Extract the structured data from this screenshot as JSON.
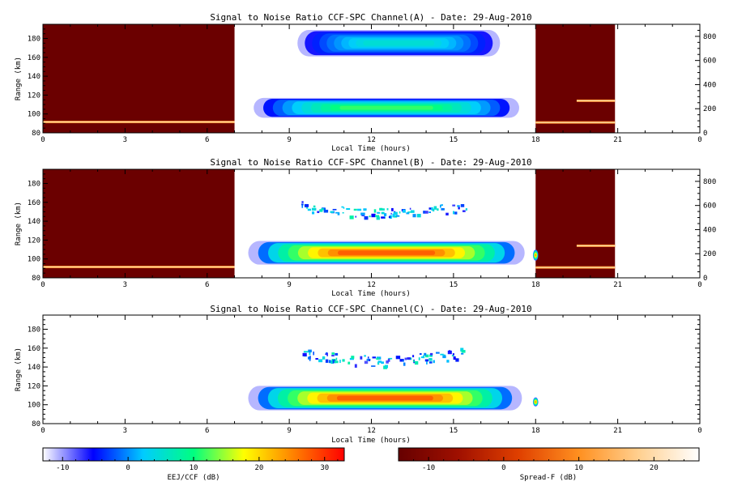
{
  "chart_data": {
    "type": "heatmap",
    "panels": [
      {
        "title": "Signal to Noise Ratio CCF-SPC Channel(A) - Date: 29-Aug-2010",
        "xlabel": "Local Time (hours)",
        "ylabel": "Range (km)",
        "xlim": [
          0,
          24
        ],
        "xticks": [
          "0",
          "3",
          "6",
          "9",
          "12",
          "15",
          "18",
          "21",
          "0"
        ],
        "ylim": [
          80,
          195
        ],
        "yticks": [
          "80",
          "100",
          "120",
          "140",
          "160",
          "180"
        ],
        "right_ylim": [
          0,
          900
        ],
        "right_yticks": [
          "0",
          "200",
          "400",
          "600",
          "800"
        ],
        "spreadf_intervals": [
          [
            0,
            7
          ],
          [
            18,
            20.9
          ]
        ],
        "spreadf_traces": [
          [
            0,
            7,
            91.5
          ],
          [
            18,
            20.9,
            91
          ],
          [
            19.5,
            20.9,
            114
          ]
        ],
        "blobs": [
          {
            "x0": 9.3,
            "x1": 16.7,
            "y0": 161,
            "y1": 189,
            "peak_db": 6
          },
          {
            "x0": 7.7,
            "x1": 17.4,
            "y0": 96,
            "y1": 117,
            "peak_db": 13
          }
        ]
      },
      {
        "title": "Signal to Noise Ratio CCF-SPC Channel(B) - Date: 29-Aug-2010",
        "xlabel": "Local Time (hours)",
        "ylabel": "Range (km)",
        "xlim": [
          0,
          24
        ],
        "xticks": [
          "0",
          "3",
          "6",
          "9",
          "12",
          "15",
          "18",
          "21",
          "0"
        ],
        "ylim": [
          80,
          195
        ],
        "yticks": [
          "80",
          "100",
          "120",
          "140",
          "160",
          "180"
        ],
        "right_ylim": [
          0,
          900
        ],
        "right_yticks": [
          "0",
          "200",
          "400",
          "600",
          "800"
        ],
        "spreadf_intervals": [
          [
            0,
            7
          ],
          [
            18,
            20.9
          ]
        ],
        "spreadf_traces": [
          [
            0,
            7,
            91.5
          ],
          [
            18,
            20.9,
            91
          ],
          [
            19.5,
            20.9,
            114
          ]
        ],
        "blobs": [
          {
            "x0": 9.4,
            "x1": 15.5,
            "y0": 143,
            "y1": 165,
            "peak_db": 8,
            "style": "scatter"
          },
          {
            "x0": 7.5,
            "x1": 17.6,
            "y0": 94,
            "y1": 119,
            "peak_db": 30
          },
          {
            "x0": 17.9,
            "x1": 18.1,
            "y0": 98,
            "y1": 110,
            "peak_db": 25
          }
        ]
      },
      {
        "title": "Signal to Noise Ratio CCF-SPC Channel(C) - Date: 29-Aug-2010",
        "xlabel": "Local Time (hours)",
        "ylabel": "Range (km)",
        "xlim": [
          0,
          24
        ],
        "xticks": [
          "0",
          "3",
          "6",
          "9",
          "12",
          "15",
          "18",
          "21",
          "0"
        ],
        "ylim": [
          80,
          195
        ],
        "yticks": [
          "80",
          "100",
          "120",
          "140",
          "160",
          "180"
        ],
        "right_ylim": null,
        "right_yticks": [],
        "spreadf_intervals": [],
        "spreadf_traces": [],
        "blobs": [
          {
            "x0": 9.4,
            "x1": 15.5,
            "y0": 140,
            "y1": 166,
            "peak_db": 8,
            "style": "scatter"
          },
          {
            "x0": 7.5,
            "x1": 17.5,
            "y0": 94,
            "y1": 120,
            "peak_db": 30
          },
          {
            "x0": 17.9,
            "x1": 18.1,
            "y0": 98,
            "y1": 108,
            "peak_db": 25
          }
        ]
      }
    ],
    "colorbars": [
      {
        "label": "EEJ/CCF (dB)",
        "range": [
          -13,
          33
        ],
        "ticks": [
          "-10",
          "0",
          "10",
          "20",
          "30"
        ],
        "tick_values": [
          -10,
          0,
          10,
          20,
          30
        ],
        "colormap": [
          "#ffffff",
          "#0000ff",
          "#00ccff",
          "#00ff80",
          "#ffff00",
          "#ff8000",
          "#ff0000"
        ]
      },
      {
        "label": "Spread-F (dB)",
        "range": [
          -14,
          26
        ],
        "ticks": [
          "-10",
          "0",
          "10",
          "20"
        ],
        "tick_values": [
          -10,
          0,
          10,
          20
        ],
        "colormap": [
          "#660000",
          "#a01000",
          "#e04000",
          "#ff9020",
          "#ffd090",
          "#ffffff"
        ]
      }
    ],
    "colors": {
      "spreadf_background": "#6b0000",
      "frame": "#000000"
    }
  }
}
